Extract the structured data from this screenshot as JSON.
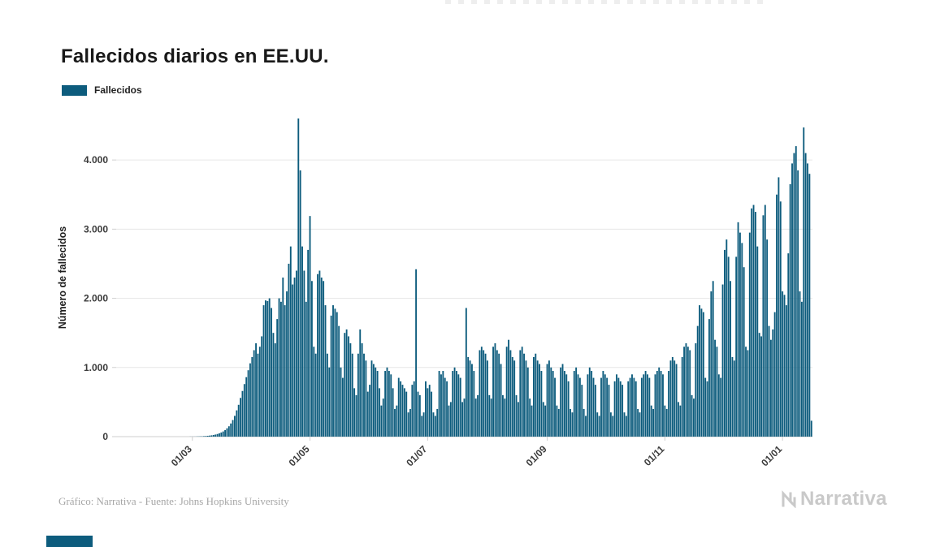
{
  "header": {
    "title": "Fallecidos diarios en EE.UU."
  },
  "legend": {
    "label": "Fallecidos",
    "color": "#0d5c7d"
  },
  "footer": {
    "credit": "Gráfico: Narrativa - Fuente: Johns Hopkins University",
    "logo_text": "Narrativa"
  },
  "colors": {
    "bar": "#0d5c7d",
    "grid": "#e6e6e6",
    "axis": "#cfcfcf",
    "axis_text": "#3b3b3b",
    "logo_gray": "#c9c9c9"
  },
  "chart_data": {
    "type": "bar",
    "title": "Fallecidos diarios en EE.UU.",
    "series_name": "Fallecidos",
    "xlabel": "",
    "ylabel": "Número de fallecidos",
    "legend_position": "top-left",
    "grid": "horizontal",
    "bar_color": "#0d5c7d",
    "grid_color": "#e6e6e6",
    "axis_text_color": "#3b3b3b",
    "ylim": [
      0,
      4600
    ],
    "yticks": [
      {
        "value": 0,
        "label": "0"
      },
      {
        "value": 1000,
        "label": "1.000"
      },
      {
        "value": 2000,
        "label": "2.000"
      },
      {
        "value": 3000,
        "label": "3.000"
      },
      {
        "value": 4000,
        "label": "4.000"
      }
    ],
    "start_date": "2020-01-22",
    "end_date": "2021-01-16",
    "xticks": [
      {
        "index": 39,
        "label": "01/03"
      },
      {
        "index": 100,
        "label": "01/05"
      },
      {
        "index": 161,
        "label": "01/07"
      },
      {
        "index": 223,
        "label": "01/09"
      },
      {
        "index": 284,
        "label": "01/11"
      },
      {
        "index": 345,
        "label": "01/01"
      }
    ],
    "values": [
      0,
      0,
      0,
      0,
      0,
      0,
      0,
      0,
      0,
      0,
      0,
      0,
      0,
      0,
      0,
      0,
      0,
      0,
      0,
      0,
      0,
      0,
      0,
      0,
      0,
      0,
      0,
      0,
      0,
      0,
      0,
      0,
      0,
      0,
      0,
      0,
      0,
      0,
      1,
      1,
      1,
      2,
      3,
      4,
      5,
      7,
      9,
      12,
      15,
      19,
      24,
      30,
      38,
      48,
      60,
      75,
      95,
      120,
      150,
      190,
      240,
      300,
      380,
      460,
      560,
      660,
      760,
      860,
      960,
      1060,
      1150,
      1250,
      1350,
      1200,
      1300,
      1450,
      1900,
      1970,
      1960,
      2000,
      1860,
      1500,
      1350,
      1700,
      2000,
      1950,
      2300,
      1900,
      2100,
      2500,
      2750,
      2200,
      2300,
      2400,
      4600,
      3850,
      2750,
      2400,
      1950,
      2700,
      3190,
      2250,
      1300,
      1200,
      2350,
      2400,
      2300,
      2250,
      1900,
      1200,
      1000,
      1750,
      1900,
      1850,
      1800,
      1600,
      1000,
      850,
      1500,
      1550,
      1450,
      1350,
      1200,
      700,
      600,
      1200,
      1550,
      1350,
      1200,
      1100,
      650,
      750,
      1100,
      1050,
      1000,
      950,
      700,
      450,
      550,
      950,
      1000,
      950,
      900,
      700,
      400,
      450,
      850,
      800,
      750,
      700,
      650,
      350,
      400,
      750,
      800,
      2420,
      650,
      600,
      300,
      350,
      800,
      700,
      750,
      650,
      350,
      300,
      400,
      950,
      900,
      950,
      850,
      800,
      450,
      500,
      950,
      1000,
      950,
      900,
      850,
      500,
      550,
      1860,
      1150,
      1100,
      1050,
      950,
      550,
      600,
      1250,
      1300,
      1250,
      1200,
      1100,
      600,
      550,
      1300,
      1350,
      1250,
      1200,
      1050,
      600,
      550,
      1300,
      1400,
      1250,
      1150,
      1100,
      600,
      500,
      1250,
      1300,
      1200,
      1100,
      1000,
      550,
      450,
      1150,
      1200,
      1100,
      1050,
      950,
      500,
      450,
      1050,
      1100,
      1000,
      950,
      850,
      450,
      400,
      1000,
      1050,
      950,
      900,
      800,
      400,
      350,
      950,
      1000,
      900,
      850,
      750,
      400,
      300,
      900,
      1000,
      950,
      850,
      750,
      350,
      300,
      850,
      950,
      900,
      850,
      750,
      350,
      300,
      800,
      900,
      850,
      800,
      750,
      350,
      300,
      800,
      850,
      900,
      850,
      800,
      400,
      350,
      850,
      900,
      950,
      900,
      850,
      450,
      400,
      900,
      950,
      1000,
      950,
      900,
      450,
      400,
      950,
      1100,
      1150,
      1100,
      1050,
      500,
      450,
      1150,
      1300,
      1350,
      1300,
      1250,
      600,
      550,
      1350,
      1600,
      1900,
      1850,
      1800,
      850,
      800,
      1700,
      2100,
      2250,
      1400,
      1300,
      900,
      850,
      2200,
      2700,
      2850,
      2600,
      2250,
      1150,
      1100,
      2600,
      3100,
      2950,
      2800,
      2450,
      1300,
      1250,
      2950,
      3300,
      3350,
      3250,
      2750,
      1500,
      1450,
      3200,
      3350,
      2850,
      1600,
      1400,
      1550,
      1800,
      3500,
      3750,
      3400,
      2100,
      2050,
      1900,
      2650,
      3650,
      3950,
      4100,
      4200,
      3850,
      2100,
      1950,
      4470,
      4100,
      3950,
      3800,
      230
    ]
  }
}
